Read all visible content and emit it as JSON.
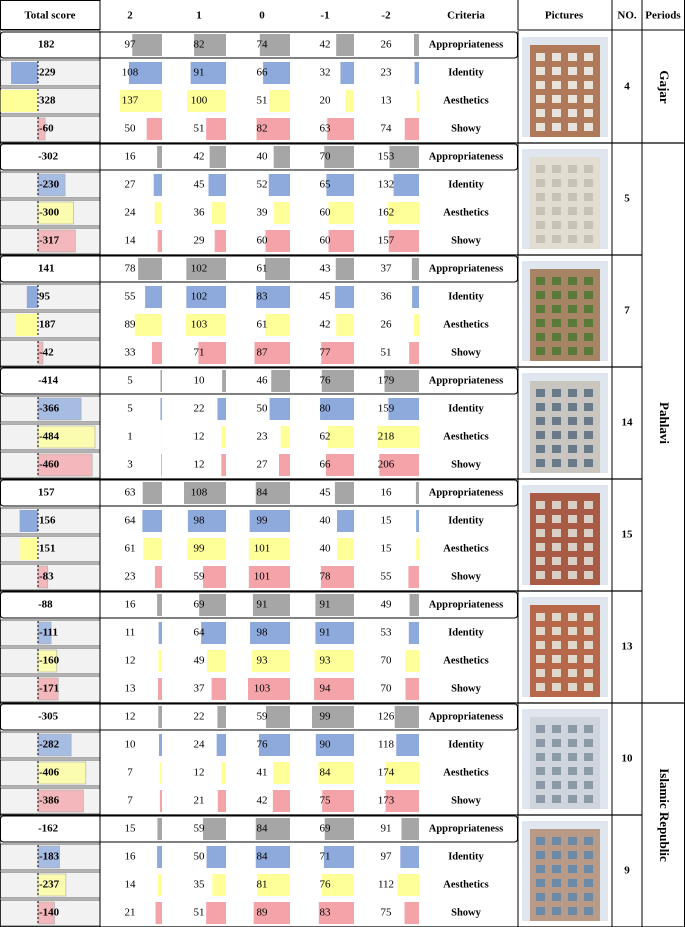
{
  "header": [
    "Total score",
    "2",
    "1",
    "0",
    "-1",
    "-2",
    "Criteria",
    "Pictures",
    "NO.",
    "Periods"
  ],
  "periods": [
    {
      "name": "Gajar",
      "buildings": [
        {
          "no": 4,
          "rows": [
            {
              "total": 182,
              "counts": [
                97,
                82,
                74,
                42,
                26
              ],
              "criteria": "Appropriateness"
            },
            {
              "total": 229,
              "counts": [
                108,
                91,
                66,
                32,
                23
              ],
              "criteria": "Identity"
            },
            {
              "total": 328,
              "counts": [
                137,
                100,
                51,
                20,
                13
              ],
              "criteria": "Aesthetics"
            },
            {
              "total": -60,
              "counts": [
                50,
                51,
                82,
                63,
                74
              ],
              "criteria": "Showy"
            }
          ]
        }
      ]
    },
    {
      "name": "Pahlavi",
      "buildings": [
        {
          "no": 5,
          "rows": [
            {
              "total": -302,
              "counts": [
                16,
                42,
                40,
                70,
                153
              ],
              "criteria": "Appropriateness"
            },
            {
              "total": -230,
              "counts": [
                27,
                45,
                52,
                65,
                132
              ],
              "criteria": "Identity"
            },
            {
              "total": -300,
              "counts": [
                24,
                36,
                39,
                60,
                162
              ],
              "criteria": "Aesthetics"
            },
            {
              "total": -317,
              "counts": [
                14,
                29,
                60,
                60,
                157
              ],
              "criteria": "Showy"
            }
          ]
        },
        {
          "no": 7,
          "rows": [
            {
              "total": 141,
              "counts": [
                78,
                102,
                61,
                43,
                37
              ],
              "criteria": "Appropriateness"
            },
            {
              "total": 95,
              "counts": [
                55,
                102,
                83,
                45,
                36
              ],
              "criteria": "Identity"
            },
            {
              "total": 187,
              "counts": [
                89,
                103,
                61,
                42,
                26
              ],
              "criteria": "Aesthetics"
            },
            {
              "total": -42,
              "counts": [
                33,
                71,
                87,
                77,
                51
              ],
              "criteria": "Showy"
            }
          ]
        },
        {
          "no": 14,
          "rows": [
            {
              "total": -414,
              "counts": [
                5,
                10,
                46,
                76,
                179
              ],
              "criteria": "Appropriateness"
            },
            {
              "total": -366,
              "counts": [
                5,
                22,
                50,
                80,
                159
              ],
              "criteria": "Identity"
            },
            {
              "total": -484,
              "counts": [
                1,
                12,
                23,
                62,
                218
              ],
              "criteria": "Aesthetics"
            },
            {
              "total": -460,
              "counts": [
                3,
                12,
                27,
                66,
                206
              ],
              "criteria": "Showy"
            }
          ]
        },
        {
          "no": 15,
          "rows": [
            {
              "total": 157,
              "counts": [
                63,
                108,
                84,
                45,
                16
              ],
              "criteria": "Appropriateness"
            },
            {
              "total": 156,
              "counts": [
                64,
                98,
                99,
                40,
                15
              ],
              "criteria": "Identity"
            },
            {
              "total": 151,
              "counts": [
                61,
                99,
                101,
                40,
                15
              ],
              "criteria": "Aesthetics"
            },
            {
              "total": -83,
              "counts": [
                23,
                59,
                101,
                78,
                55
              ],
              "criteria": "Showy"
            }
          ]
        },
        {
          "no": 13,
          "rows": [
            {
              "total": -88,
              "counts": [
                16,
                69,
                91,
                91,
                49
              ],
              "criteria": "Appropriateness"
            },
            {
              "total": -111,
              "counts": [
                11,
                64,
                98,
                91,
                53
              ],
              "criteria": "Identity"
            },
            {
              "total": -160,
              "counts": [
                12,
                49,
                93,
                93,
                70
              ],
              "criteria": "Aesthetics"
            },
            {
              "total": -171,
              "counts": [
                13,
                37,
                103,
                94,
                70
              ],
              "criteria": "Showy"
            }
          ]
        }
      ]
    },
    {
      "name": "Islamic Republic",
      "buildings": [
        {
          "no": 10,
          "rows": [
            {
              "total": -305,
              "counts": [
                12,
                22,
                59,
                99,
                126
              ],
              "criteria": "Appropriateness"
            },
            {
              "total": -282,
              "counts": [
                10,
                24,
                76,
                90,
                118
              ],
              "criteria": "Identity"
            },
            {
              "total": -406,
              "counts": [
                7,
                12,
                41,
                84,
                174
              ],
              "criteria": "Aesthetics"
            },
            {
              "total": -386,
              "counts": [
                7,
                21,
                42,
                75,
                173
              ],
              "criteria": "Showy"
            }
          ]
        },
        {
          "no": 9,
          "rows": [
            {
              "total": -162,
              "counts": [
                15,
                59,
                84,
                69,
                91
              ],
              "criteria": "Appropriateness"
            },
            {
              "total": -183,
              "counts": [
                16,
                50,
                84,
                71,
                97
              ],
              "criteria": "Identity"
            },
            {
              "total": -237,
              "counts": [
                14,
                35,
                81,
                76,
                112
              ],
              "criteria": "Aesthetics"
            },
            {
              "total": -140,
              "counts": [
                21,
                51,
                89,
                83,
                75
              ],
              "criteria": "Showy"
            }
          ]
        }
      ]
    }
  ]
}
